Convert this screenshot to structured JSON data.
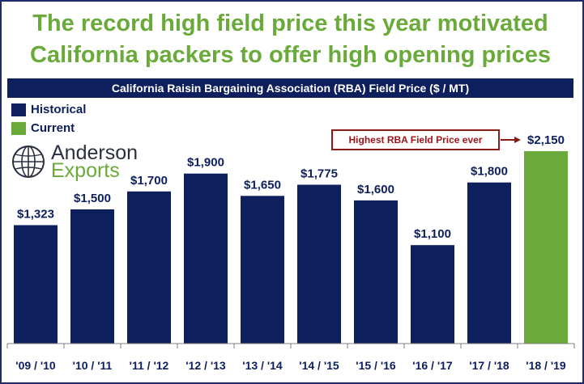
{
  "headline": {
    "line1": "The record high field price this year motivated",
    "line2": "California packers to offer high opening prices"
  },
  "logo": {
    "line1": "Anderson",
    "line2": "Exports"
  },
  "callout": {
    "text": "Highest RBA Field Price ever"
  },
  "colors": {
    "historical": "#0d1f5c",
    "current": "#6aaa3a",
    "headline": "#6aaa3a",
    "callout_border": "#8a1a1a",
    "callout_text": "#a0141a"
  },
  "chart_data": {
    "type": "bar",
    "title": "California Raisin Bargaining Association (RBA) Field Price ($ / MT)",
    "categories": [
      "'09 / '10",
      "'10 / '11",
      "'11 / '12",
      "'12 / '13",
      "'13 / '14",
      "'14 / '15",
      "'15 / '16",
      "'16 / '17",
      "'17 / '18",
      "'18 / '19"
    ],
    "values": [
      1323,
      1500,
      1700,
      1900,
      1650,
      1775,
      1600,
      1100,
      1800,
      2150
    ],
    "value_labels": [
      "$1,323",
      "$1,500",
      "$1,700",
      "$1,900",
      "$1,650",
      "$1,775",
      "$1,600",
      "$1,100",
      "$1,800",
      "$2,150"
    ],
    "series_of_bar": [
      "Historical",
      "Historical",
      "Historical",
      "Historical",
      "Historical",
      "Historical",
      "Historical",
      "Historical",
      "Historical",
      "Current"
    ],
    "legend": [
      {
        "name": "Historical",
        "color": "#0d1f5c"
      },
      {
        "name": "Current",
        "color": "#6aaa3a"
      }
    ],
    "legend_position": "top-left",
    "ylim": [
      0,
      2150
    ],
    "grid": false,
    "xlabel": "",
    "ylabel": ""
  }
}
